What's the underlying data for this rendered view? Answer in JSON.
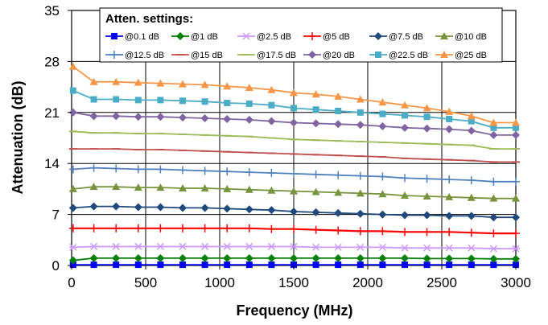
{
  "chart_data": {
    "type": "line",
    "title": "",
    "xlabel": "Frequency (MHz)",
    "ylabel": "Attenuation (dB)",
    "xlim": [
      0,
      3000
    ],
    "ylim": [
      0,
      35
    ],
    "xticks": [
      0,
      500,
      1000,
      1500,
      2000,
      2500,
      3000
    ],
    "yticks": [
      0,
      7,
      14,
      21,
      28,
      35
    ],
    "grid": true,
    "legend_title": "Atten. settings:",
    "legend_position": "top",
    "x": [
      10,
      150,
      300,
      450,
      600,
      750,
      900,
      1050,
      1200,
      1350,
      1500,
      1650,
      1800,
      1950,
      2100,
      2250,
      2400,
      2550,
      2700,
      2850,
      3000
    ],
    "series": [
      {
        "name": "@0.1 dB",
        "color": "#0000ff",
        "marker": "square",
        "values": [
          0.1,
          0.1,
          0.1,
          0.1,
          0.1,
          0.1,
          0.1,
          0.1,
          0.1,
          0.1,
          0.1,
          0.1,
          0.1,
          0.1,
          0.1,
          0.1,
          0.1,
          0.1,
          0.1,
          0.1,
          0.1
        ]
      },
      {
        "name": "@1 dB",
        "color": "#008000",
        "marker": "diamond",
        "values": [
          0.7,
          1.0,
          1.0,
          1.0,
          1.0,
          1.0,
          1.0,
          1.0,
          1.0,
          1.0,
          1.0,
          1.0,
          1.0,
          1.0,
          1.0,
          1.0,
          0.95,
          0.95,
          0.95,
          0.9,
          0.9
        ]
      },
      {
        "name": "@2.5 dB",
        "color": "#cc99ff",
        "marker": "star",
        "values": [
          2.5,
          2.6,
          2.6,
          2.6,
          2.6,
          2.6,
          2.6,
          2.6,
          2.6,
          2.6,
          2.6,
          2.5,
          2.5,
          2.5,
          2.5,
          2.4,
          2.4,
          2.4,
          2.4,
          2.3,
          2.3
        ]
      },
      {
        "name": "@5 dB",
        "color": "#ff0000",
        "marker": "plus",
        "values": [
          5.1,
          5.1,
          5.1,
          5.1,
          5.1,
          5.1,
          5.1,
          5.1,
          5.1,
          5.0,
          5.0,
          4.9,
          4.8,
          4.7,
          4.7,
          4.6,
          4.6,
          4.6,
          4.5,
          4.4,
          4.4
        ]
      },
      {
        "name": "@7.5 dB",
        "color": "#1f497d",
        "marker": "diamond",
        "values": [
          7.9,
          8.1,
          8.1,
          8.0,
          8.0,
          7.9,
          7.9,
          7.8,
          7.7,
          7.6,
          7.4,
          7.3,
          7.2,
          7.1,
          7.0,
          6.9,
          6.9,
          6.8,
          6.8,
          6.6,
          6.6
        ]
      },
      {
        "name": "@10 dB",
        "color": "#77933c",
        "marker": "triangle",
        "values": [
          10.5,
          10.8,
          10.8,
          10.7,
          10.7,
          10.6,
          10.6,
          10.5,
          10.4,
          10.3,
          10.2,
          10.1,
          10.0,
          9.9,
          9.8,
          9.6,
          9.5,
          9.4,
          9.3,
          9.2,
          9.2
        ]
      },
      {
        "name": "@12.5 dB",
        "color": "#4f81bd",
        "marker": "plus",
        "values": [
          13.2,
          13.4,
          13.3,
          13.2,
          13.2,
          13.1,
          13.0,
          12.9,
          12.8,
          12.7,
          12.6,
          12.5,
          12.4,
          12.3,
          12.2,
          12.0,
          11.9,
          11.8,
          11.7,
          11.5,
          11.5
        ]
      },
      {
        "name": "@15 dB",
        "color": "#c0504d",
        "marker": "dash",
        "values": [
          16.0,
          16.0,
          16.0,
          15.9,
          15.9,
          15.8,
          15.7,
          15.6,
          15.5,
          15.4,
          15.3,
          15.2,
          15.1,
          15.0,
          14.9,
          14.7,
          14.6,
          14.5,
          14.4,
          14.2,
          14.2
        ]
      },
      {
        "name": "@17.5 dB",
        "color": "#9bbb59",
        "marker": "dash",
        "values": [
          18.4,
          18.2,
          18.2,
          18.1,
          18.1,
          18.0,
          17.9,
          17.8,
          17.7,
          17.5,
          17.3,
          17.2,
          17.1,
          17.0,
          16.9,
          16.8,
          16.7,
          16.6,
          16.5,
          16.0,
          16.0
        ]
      },
      {
        "name": "@20 dB",
        "color": "#8064a2",
        "marker": "diamond",
        "values": [
          21.0,
          20.5,
          20.5,
          20.4,
          20.4,
          20.3,
          20.2,
          20.1,
          20.0,
          19.8,
          19.6,
          19.5,
          19.4,
          19.3,
          19.1,
          18.9,
          18.8,
          18.7,
          18.5,
          17.9,
          17.9
        ]
      },
      {
        "name": "@22.5 dB",
        "color": "#4bacc6",
        "marker": "square",
        "values": [
          24.0,
          22.8,
          22.8,
          22.7,
          22.7,
          22.6,
          22.5,
          22.3,
          22.2,
          22.0,
          21.6,
          21.4,
          21.2,
          21.0,
          20.8,
          20.6,
          20.4,
          20.1,
          19.8,
          18.9,
          18.9
        ]
      },
      {
        "name": "@25 dB",
        "color": "#f79646",
        "marker": "triangle",
        "values": [
          27.3,
          25.2,
          25.2,
          25.1,
          25.0,
          24.9,
          24.8,
          24.6,
          24.4,
          24.1,
          23.7,
          23.5,
          23.2,
          22.8,
          22.4,
          22.0,
          21.6,
          21.1,
          20.5,
          19.6,
          19.6
        ]
      }
    ]
  }
}
